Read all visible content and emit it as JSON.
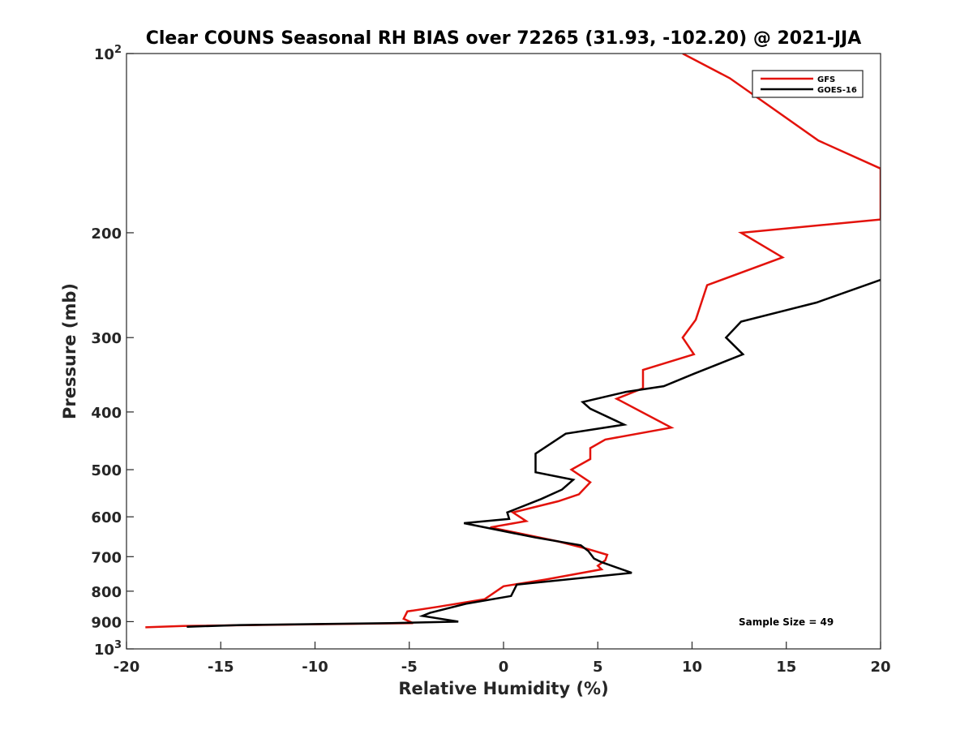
{
  "chart_data": {
    "type": "line",
    "title": "Clear COUNS Seasonal RH BIAS over 72265 (31.93, -102.20) @ 2021-JJA",
    "xlabel": "Relative Humidity (%)",
    "ylabel": "Pressure (mb)",
    "xlim": [
      -20,
      20
    ],
    "ylim": [
      100,
      1000
    ],
    "yscale": "log",
    "y_reversed": true,
    "x_ticks": [
      -20,
      -15,
      -10,
      -5,
      0,
      5,
      10,
      15,
      20
    ],
    "x_tick_labels": [
      "-20",
      "-15",
      "-10",
      "-5",
      "0",
      "5",
      "10",
      "15",
      "20"
    ],
    "y_ticks": [
      {
        "value": 100,
        "label": "10",
        "sup": "2"
      },
      {
        "value": 200,
        "label": "200"
      },
      {
        "value": 300,
        "label": "300"
      },
      {
        "value": 400,
        "label": "400"
      },
      {
        "value": 500,
        "label": "500"
      },
      {
        "value": 600,
        "label": "600"
      },
      {
        "value": 700,
        "label": "700"
      },
      {
        "value": 800,
        "label": "800"
      },
      {
        "value": 900,
        "label": "900"
      },
      {
        "value": 1000,
        "label": "10",
        "sup": "3"
      }
    ],
    "grid": false,
    "legend_position": "top-right",
    "annotation": "Sample Size = 49",
    "series": [
      {
        "name": "GFS",
        "color": "#e3120b",
        "points": [
          [
            9.5,
            100
          ],
          [
            12,
            110
          ],
          [
            13.7,
            120
          ],
          [
            16.7,
            140
          ],
          [
            20,
            156
          ],
          [
            20,
            190
          ],
          [
            12.6,
            200
          ],
          [
            14.8,
            220
          ],
          [
            10.8,
            245
          ],
          [
            10.2,
            280
          ],
          [
            9.5,
            300
          ],
          [
            10.1,
            320
          ],
          [
            7.4,
            340
          ],
          [
            7.4,
            365
          ],
          [
            6.0,
            380
          ],
          [
            8.9,
            425
          ],
          [
            5.4,
            445
          ],
          [
            4.6,
            460
          ],
          [
            4.6,
            480
          ],
          [
            3.6,
            500
          ],
          [
            4.6,
            525
          ],
          [
            4.0,
            550
          ],
          [
            2.9,
            565
          ],
          [
            0.5,
            590
          ],
          [
            1.2,
            610
          ],
          [
            -0.7,
            625
          ],
          [
            2.9,
            660
          ],
          [
            4.5,
            680
          ],
          [
            5.5,
            695
          ],
          [
            5.4,
            710
          ],
          [
            5.0,
            725
          ],
          [
            5.2,
            735
          ],
          [
            2.2,
            765
          ],
          [
            0.0,
            785
          ],
          [
            -1.0,
            825
          ],
          [
            -3.5,
            850
          ],
          [
            -5.1,
            865
          ],
          [
            -5.3,
            890
          ],
          [
            -4.8,
            905
          ],
          [
            -17.0,
            915
          ],
          [
            -19.0,
            920
          ]
        ]
      },
      {
        "name": "GOES-16",
        "color": "#000000",
        "points": [
          [
            20,
            240
          ],
          [
            16.6,
            262
          ],
          [
            12.6,
            282
          ],
          [
            11.8,
            300
          ],
          [
            12.7,
            320
          ],
          [
            10.1,
            345
          ],
          [
            8.5,
            362
          ],
          [
            6.5,
            370
          ],
          [
            4.2,
            385
          ],
          [
            4.6,
            395
          ],
          [
            6.4,
            420
          ],
          [
            3.3,
            435
          ],
          [
            1.7,
            470
          ],
          [
            1.7,
            505
          ],
          [
            3.7,
            520
          ],
          [
            3.1,
            540
          ],
          [
            2.0,
            560
          ],
          [
            0.2,
            590
          ],
          [
            0.3,
            605
          ],
          [
            -2.1,
            615
          ],
          [
            1.7,
            650
          ],
          [
            4.1,
            670
          ],
          [
            4.5,
            685
          ],
          [
            4.8,
            705
          ],
          [
            5.2,
            715
          ],
          [
            6.8,
            745
          ],
          [
            0.7,
            780
          ],
          [
            0.4,
            815
          ],
          [
            -2.0,
            840
          ],
          [
            -3.9,
            870
          ],
          [
            -4.3,
            880
          ],
          [
            -2.4,
            900
          ],
          [
            -6.0,
            905
          ],
          [
            -14.0,
            912
          ],
          [
            -16.8,
            918
          ]
        ]
      }
    ]
  }
}
